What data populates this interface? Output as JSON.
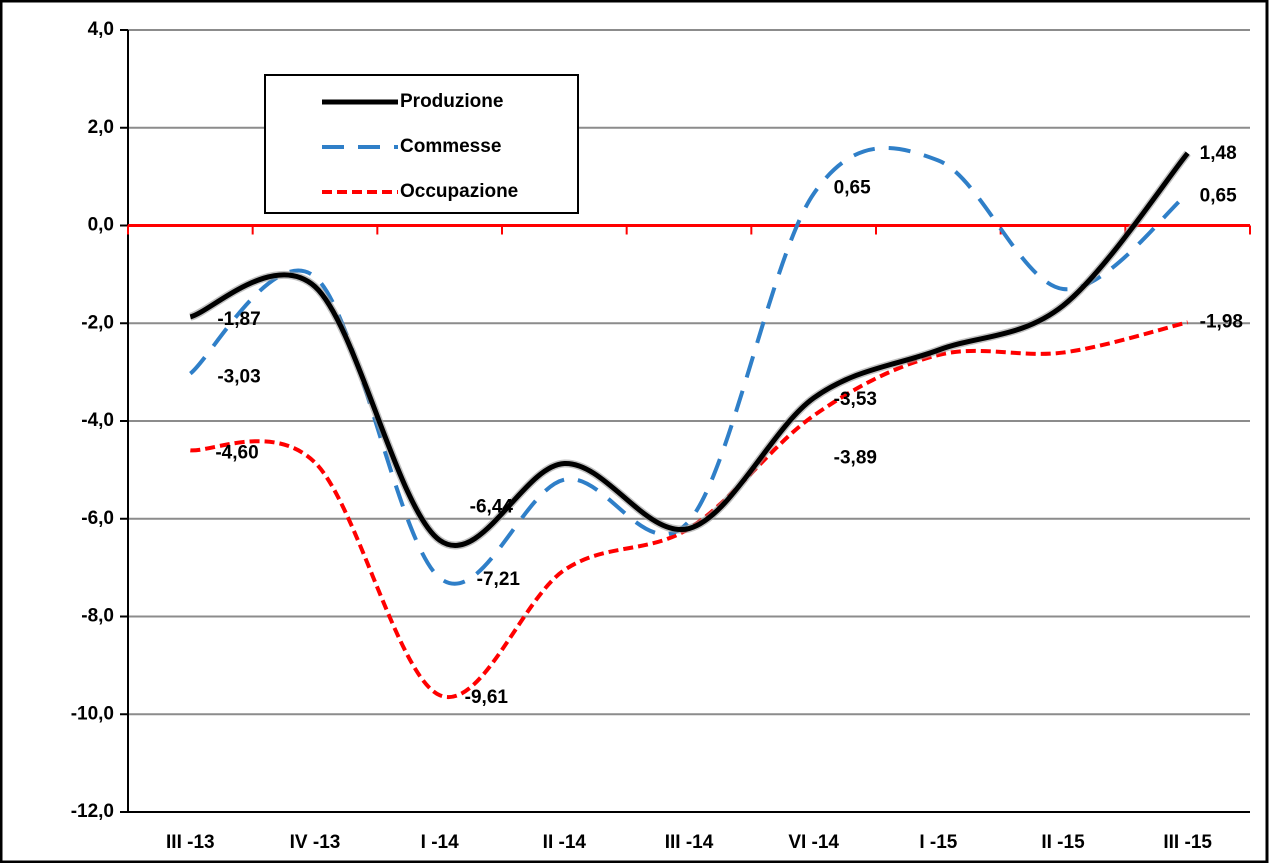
{
  "chart_data": {
    "type": "line",
    "categories": [
      "III -13",
      "IV -13",
      "I -14",
      "II -14",
      "III -14",
      "VI -14",
      "I -15",
      "II -15",
      "III -15"
    ],
    "ylim": [
      -12,
      4
    ],
    "yticks": [
      {
        "value": -12,
        "label": "-12,0"
      },
      {
        "value": -10,
        "label": "-10,0"
      },
      {
        "value": -8,
        "label": "-8,0"
      },
      {
        "value": -6,
        "label": "-6,0"
      },
      {
        "value": -4,
        "label": "-4,0"
      },
      {
        "value": -2,
        "label": "-2,0"
      },
      {
        "value": 0,
        "label": "0,0"
      },
      {
        "value": 2,
        "label": "2,0"
      },
      {
        "value": 4,
        "label": "4,0"
      }
    ],
    "grid": true,
    "legend": "upper left",
    "series": [
      {
        "name": "Produzione",
        "color": "#000000",
        "dash": "solid",
        "values": [
          -1.87,
          -1.25,
          -6.44,
          -4.87,
          -6.2,
          -3.53,
          -2.55,
          -1.64,
          1.48
        ],
        "value_labels": [
          "-1,87",
          null,
          "-6,44",
          null,
          null,
          "-3,53",
          null,
          null,
          "1,48"
        ]
      },
      {
        "name": "Commesse",
        "color": "#2f7fc8",
        "dash": "dashed",
        "values": [
          -3.03,
          -1.05,
          -7.21,
          -5.2,
          -6.05,
          0.65,
          1.33,
          -1.3,
          0.65
        ],
        "value_labels": [
          "-3,03",
          null,
          "-7,21",
          null,
          null,
          "0,65",
          null,
          null,
          "0,65"
        ]
      },
      {
        "name": "Occupazione",
        "color": "#ff0000",
        "dash": "dotted",
        "values": [
          -4.6,
          -4.85,
          -9.61,
          -7.05,
          -6.2,
          -3.89,
          -2.65,
          -2.6,
          -1.98
        ],
        "value_labels": [
          "-4,60",
          null,
          "-9,61",
          null,
          null,
          "-3,89",
          null,
          null,
          "-1,98"
        ]
      }
    ]
  }
}
